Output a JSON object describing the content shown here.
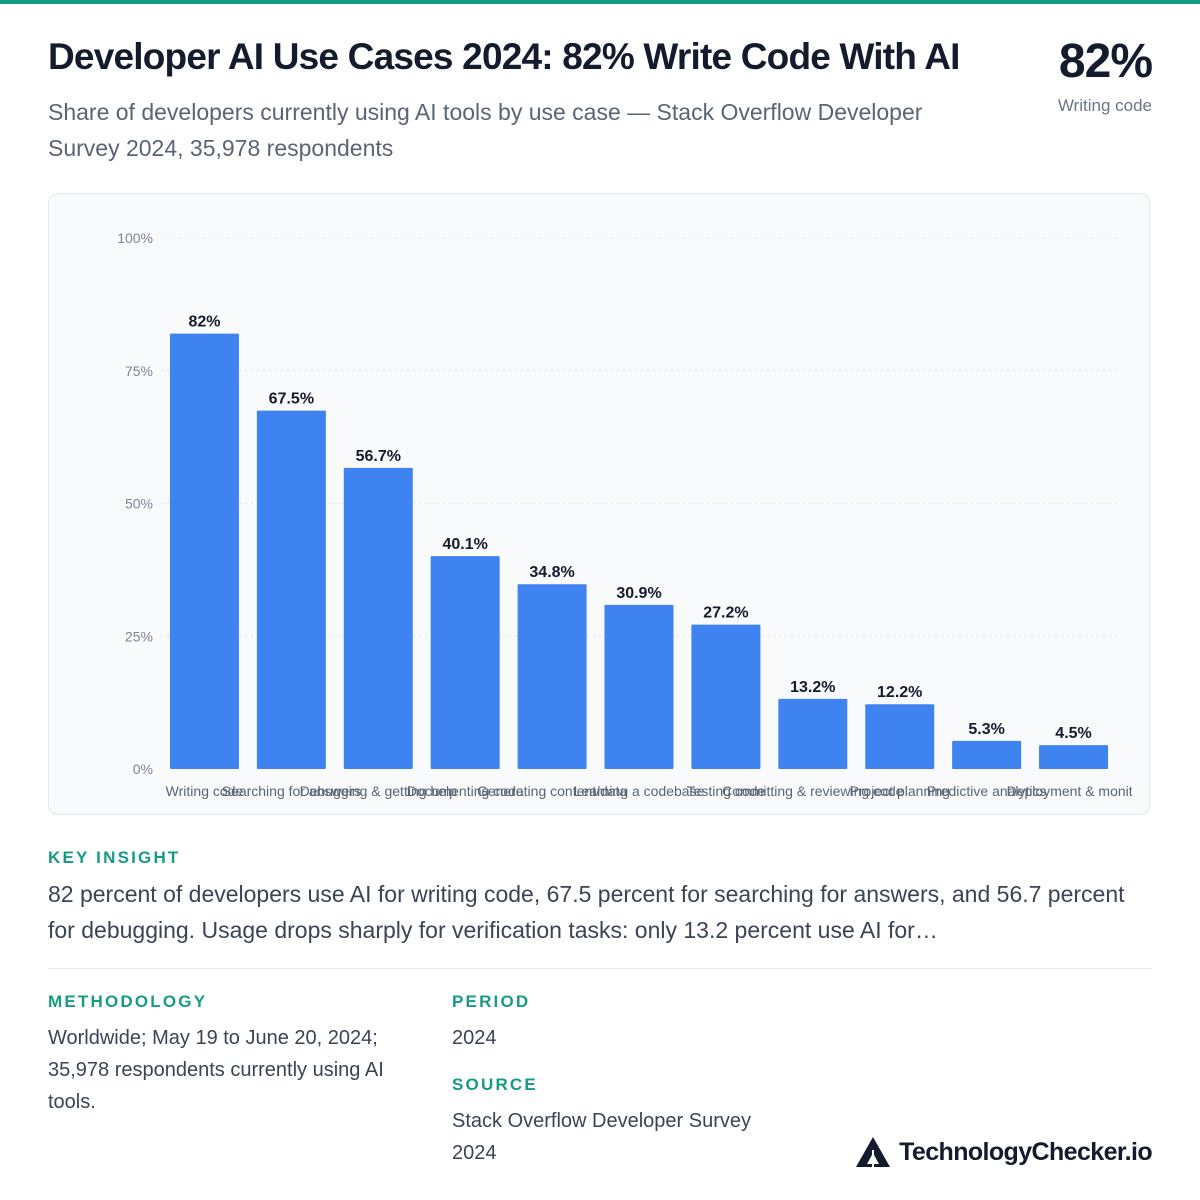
{
  "header": {
    "title": "Developer AI Use Cases 2024: 82% Write Code With AI",
    "subtitle": "Share of developers currently using AI tools by use case — Stack Overflow Developer Survey 2024, 35,978 respondents"
  },
  "stat": {
    "value": "82%",
    "label": "Writing code"
  },
  "colors": {
    "accent": "#169b85",
    "bar": "#3f83f0",
    "title": "#141b2d"
  },
  "chart_data": {
    "type": "bar",
    "categories": [
      "Writing code",
      "Searching for answers",
      "Debugging & getting help",
      "Documenting code",
      "Generating content/data",
      "Learning a codebase",
      "Testing code",
      "Committing & reviewing code",
      "Project planning",
      "Predictive analytics",
      "Deployment & monitoring"
    ],
    "tick_labels": [
      "Writing code",
      "Searching for answers",
      "Debugging & getting help",
      "Documenting code",
      "Generating content/data",
      "Learning a codebase",
      "Testing code",
      "Committing & reviewing code",
      "Project planning",
      "Predictive analytics",
      "Deployment & monito"
    ],
    "values": [
      82,
      67.5,
      56.7,
      40.1,
      34.8,
      30.9,
      27.2,
      13.2,
      12.2,
      5.3,
      4.5
    ],
    "value_labels": [
      "82%",
      "67.5%",
      "56.7%",
      "40.1%",
      "34.8%",
      "30.9%",
      "27.2%",
      "13.2%",
      "12.2%",
      "5.3%",
      "4.5%"
    ],
    "y_ticks": [
      0,
      25,
      50,
      75,
      100
    ],
    "y_tick_labels": [
      "0%",
      "25%",
      "50%",
      "75%",
      "100%"
    ],
    "ylim": [
      0,
      100
    ],
    "grid": true,
    "legend": "none",
    "xlabel": "",
    "ylabel": ""
  },
  "insight": {
    "label": "KEY INSIGHT",
    "text": "82 percent of developers use AI for writing code, 67.5 percent for searching for answers, and 56.7 percent for debugging. Usage drops sharply for verification tasks: only 13.2 percent use AI for…"
  },
  "methodology": {
    "label": "METHODOLOGY",
    "text": "Worldwide; May 19 to June 20, 2024; 35,978 respondents currently using AI tools."
  },
  "period": {
    "label": "PERIOD",
    "text": "2024"
  },
  "source": {
    "label": "SOURCE",
    "text": "Stack Overflow Developer Survey 2024"
  },
  "brand": {
    "name": "TechnologyChecker.io",
    "icon": "triangle-logo-icon"
  }
}
